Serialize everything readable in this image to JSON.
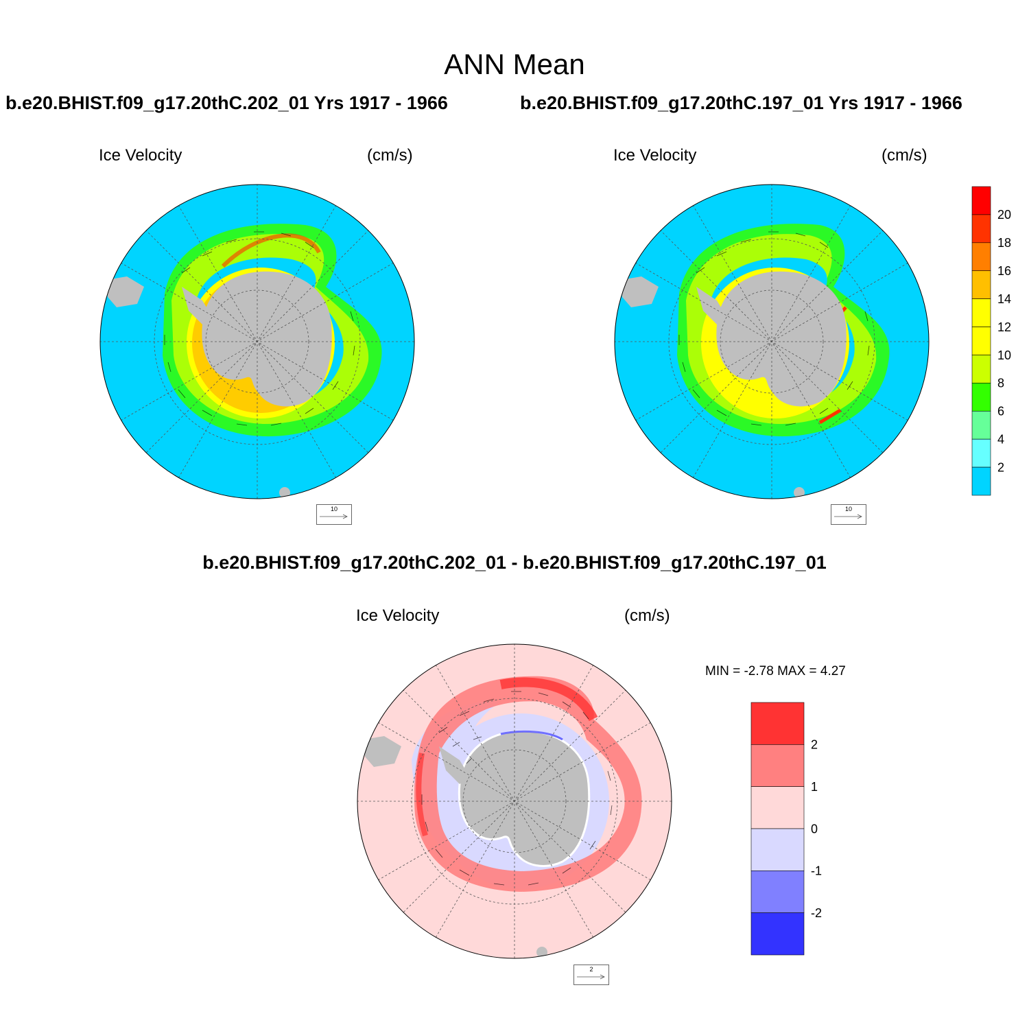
{
  "figure": {
    "title": "ANN Mean",
    "case1_title": "b.e20.BHIST.f09_g17.20thC.202_01  Yrs 1917 - 1966",
    "case2_title": "b.e20.BHIST.f09_g17.20thC.197_01  Yrs 1917 - 1966",
    "diff_title": "b.e20.BHIST.f09_g17.20thC.202_01 - b.e20.BHIST.f09_g17.20thC.197_01"
  },
  "panels": {
    "case1": {
      "variable": "Ice Velocity",
      "units": "(cm/s)",
      "ref_vector": "10"
    },
    "case2": {
      "variable": "Ice Velocity",
      "units": "(cm/s)",
      "ref_vector": "10"
    },
    "diff": {
      "variable": "Ice Velocity",
      "units": "(cm/s)",
      "ref_vector": "2",
      "minmax": "MIN =  -2.78 MAX =   4.27"
    }
  },
  "colorbars": {
    "main": {
      "labels": [
        "20",
        "18",
        "16",
        "14",
        "12",
        "10",
        "8",
        "6",
        "4",
        "2"
      ],
      "colors": [
        "#ff0000",
        "#ff3300",
        "#ff7f00",
        "#ffbf00",
        "#ffff00",
        "#ffff00",
        "#ccff00",
        "#33ff00",
        "#66ff99",
        "#66ffff",
        "#00d4ff"
      ]
    },
    "diff": {
      "labels": [
        "2",
        "1",
        "0",
        "-1",
        "-2"
      ],
      "colors": [
        "#ff3333",
        "#ff8080",
        "#ffd9d9",
        "#d9d9ff",
        "#8080ff",
        "#3333ff"
      ]
    }
  },
  "map_colors": {
    "land": "#bfbfbf",
    "ocean_low": "#00d4ff",
    "diff_background": "#ffd9d9"
  }
}
